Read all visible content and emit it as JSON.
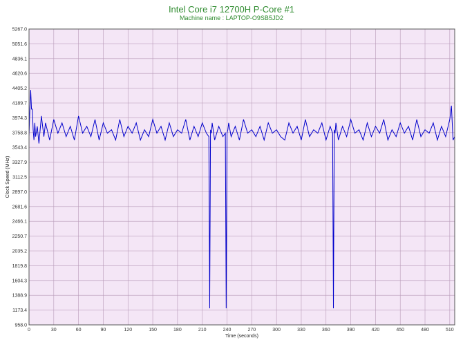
{
  "chart_data": {
    "type": "line",
    "title": "Intel Core i7 12700H P-Core #1",
    "subtitle": "Machine name : LAPTOP-O9SB5JD2",
    "xlabel": "Time (seconds)",
    "ylabel": "Clock Speed (MHz)",
    "xlim": [
      0,
      516
    ],
    "ylim": [
      958.0,
      5267.0
    ],
    "x_ticks": [
      0,
      30,
      60,
      90,
      120,
      150,
      180,
      210,
      240,
      270,
      300,
      330,
      360,
      390,
      420,
      450,
      480,
      510
    ],
    "y_ticks": [
      "958.0",
      "1173.4",
      "1388.9",
      "1604.3",
      "1819.8",
      "2035.2",
      "2250.7",
      "2466.1",
      "2681.6",
      "2897.0",
      "3112.5",
      "3327.9",
      "3543.4",
      "3758.8",
      "3974.3",
      "4189.7",
      "4405.2",
      "4620.6",
      "4836.1",
      "5051.6",
      "5267.0"
    ],
    "grid": true,
    "legend": "none",
    "colors": {
      "line": "#0000cc",
      "plot_bg": "#f4e6f6",
      "grid": "#b89ab8",
      "title": "#2e8b2e"
    },
    "series": [
      {
        "x": [
          0,
          1,
          2,
          3,
          4,
          5,
          6,
          7,
          8,
          10,
          12,
          15,
          18,
          20,
          25,
          30,
          35,
          40,
          45,
          50,
          55,
          60,
          65,
          70,
          75,
          80,
          85,
          90,
          95,
          100,
          105,
          110,
          115,
          120,
          125,
          130,
          135,
          140,
          145,
          150,
          155,
          160,
          165,
          170,
          175,
          180,
          185,
          190,
          195,
          200,
          205,
          210,
          215,
          218,
          219,
          220,
          221,
          222,
          225,
          230,
          235,
          238,
          239,
          240,
          241,
          242,
          245,
          250,
          255,
          260,
          265,
          270,
          275,
          280,
          285,
          290,
          295,
          300,
          305,
          310,
          315,
          320,
          325,
          330,
          335,
          340,
          345,
          350,
          355,
          360,
          365,
          368,
          369,
          370,
          371,
          372,
          375,
          380,
          385,
          390,
          395,
          400,
          405,
          410,
          415,
          420,
          425,
          430,
          435,
          440,
          445,
          450,
          455,
          460,
          465,
          470,
          475,
          480,
          485,
          490,
          495,
          500,
          505,
          510,
          512,
          514,
          516
        ],
        "y": [
          3700,
          4100,
          4380,
          4100,
          4100,
          3800,
          3650,
          3900,
          3700,
          3850,
          3600,
          4000,
          3700,
          3900,
          3650,
          3950,
          3750,
          3900,
          3700,
          3850,
          3650,
          4000,
          3750,
          3850,
          3700,
          3950,
          3650,
          3900,
          3750,
          3800,
          3650,
          3950,
          3700,
          3850,
          3750,
          3900,
          3650,
          3800,
          3700,
          3950,
          3750,
          3850,
          3650,
          3900,
          3700,
          3800,
          3750,
          3950,
          3650,
          3850,
          3700,
          3900,
          3750,
          3700,
          1200,
          3800,
          3750,
          3900,
          3650,
          3850,
          3700,
          3750,
          1200,
          3750,
          3800,
          3900,
          3700,
          3850,
          3650,
          3950,
          3750,
          3800,
          3700,
          3850,
          3650,
          3900,
          3750,
          3800,
          3700,
          3650,
          3900,
          3750,
          3850,
          3650,
          3950,
          3700,
          3800,
          3750,
          3900,
          3650,
          3850,
          3750,
          1200,
          3800,
          3750,
          3900,
          3650,
          3850,
          3700,
          3950,
          3750,
          3800,
          3650,
          3900,
          3700,
          3850,
          3750,
          3950,
          3650,
          3800,
          3700,
          3900,
          3750,
          3850,
          3650,
          3950,
          3700,
          3800,
          3750,
          3900,
          3650,
          3850,
          3700,
          3950,
          4150,
          3650,
          3700
        ]
      }
    ]
  }
}
